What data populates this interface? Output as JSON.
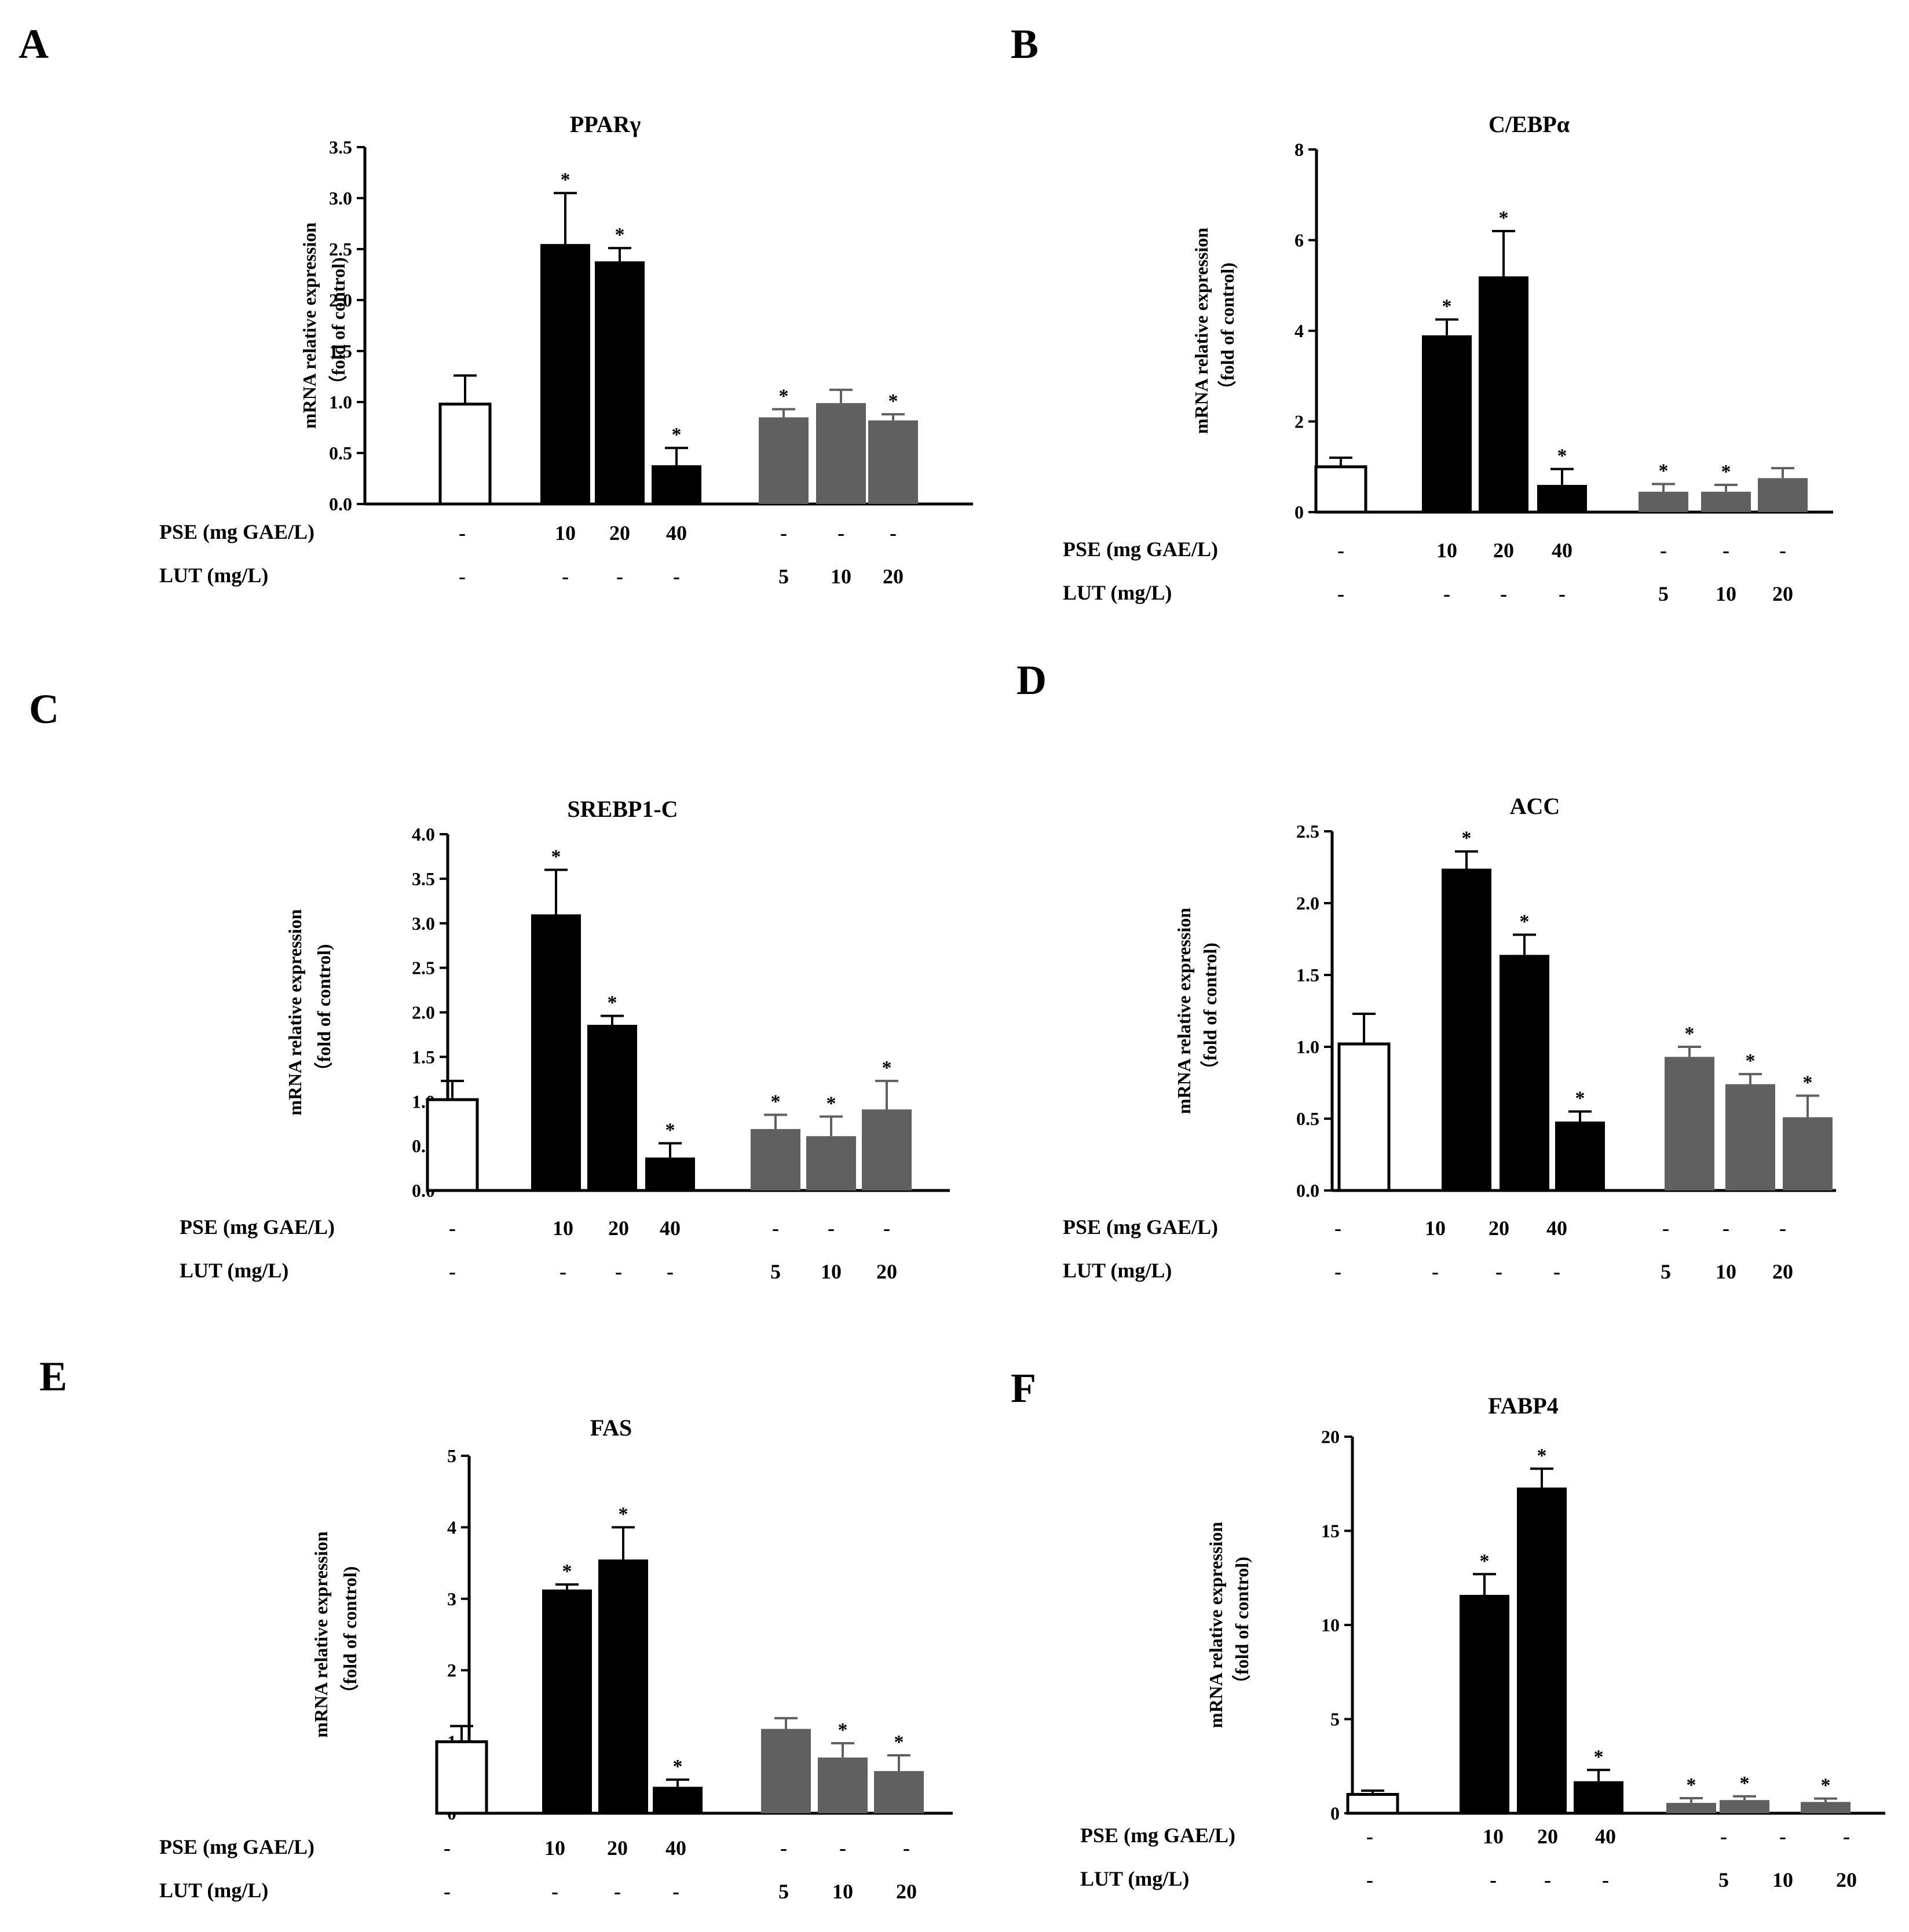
{
  "figure": {
    "colors": {
      "control": "#ffffff",
      "pse": "#000000",
      "lut": "#606060",
      "axis": "#000000"
    },
    "condition_labels": {
      "pse": "PSE (mg GAE/L)",
      "lut": "LUT (mg/L)"
    },
    "groups": [
      {
        "pse": "-",
        "lut": "-"
      },
      {
        "pse": "10",
        "lut": "-"
      },
      {
        "pse": "20",
        "lut": "-"
      },
      {
        "pse": "40",
        "lut": "-"
      },
      {
        "pse": "-",
        "lut": "5"
      },
      {
        "pse": "-",
        "lut": "10"
      },
      {
        "pse": "-",
        "lut": "20"
      }
    ]
  },
  "chart_data": [
    {
      "panel": "A",
      "type": "bar",
      "title": "PPARγ",
      "ylabel": [
        "mRNA relative expression",
        "（fold of control)"
      ],
      "ylim": [
        0,
        3.5
      ],
      "yticks": [
        "0.0",
        "0.5",
        "1.0",
        "1.5",
        "2.0",
        "2.5",
        "3.0",
        "3.5"
      ],
      "values": [
        0.98,
        2.55,
        2.38,
        0.38,
        0.85,
        0.99,
        0.82
      ],
      "errors": [
        0.28,
        0.5,
        0.13,
        0.17,
        0.08,
        0.13,
        0.06
      ],
      "significant": [
        false,
        true,
        true,
        true,
        true,
        false,
        true
      ]
    },
    {
      "panel": "B",
      "type": "bar",
      "title": "C/EBPα",
      "ylabel": [
        "mRNA relative expression",
        "（fold of control)"
      ],
      "ylim": [
        0,
        8
      ],
      "yticks": [
        "0",
        "2",
        "4",
        "6",
        "8"
      ],
      "values": [
        1.0,
        3.9,
        5.2,
        0.6,
        0.45,
        0.45,
        0.75
      ],
      "errors": [
        0.2,
        0.35,
        1.0,
        0.35,
        0.17,
        0.15,
        0.22
      ],
      "significant": [
        false,
        true,
        true,
        true,
        true,
        true,
        false
      ]
    },
    {
      "panel": "C",
      "type": "bar",
      "title": "SREBP1-C",
      "ylabel": [
        "mRNA relative expression",
        "（fold of control)"
      ],
      "ylim": [
        0,
        4
      ],
      "yticks": [
        "0.0",
        "0.5",
        "1.0",
        "1.5",
        "2.0",
        "2.5",
        "3.0",
        "3.5",
        "4.0"
      ],
      "values": [
        1.02,
        3.1,
        1.86,
        0.37,
        0.69,
        0.61,
        0.91
      ],
      "errors": [
        0.21,
        0.5,
        0.1,
        0.16,
        0.16,
        0.22,
        0.32
      ],
      "significant": [
        false,
        true,
        true,
        true,
        true,
        true,
        true
      ]
    },
    {
      "panel": "D",
      "type": "bar",
      "title": "ACC",
      "ylabel": [
        "mRNA relative expression",
        "（fold of control)"
      ],
      "ylim": [
        0,
        2.5
      ],
      "yticks": [
        "0.0",
        "0.5",
        "1.0",
        "1.5",
        "2.0",
        "2.5"
      ],
      "values": [
        1.02,
        2.24,
        1.64,
        0.48,
        0.93,
        0.74,
        0.51
      ],
      "errors": [
        0.21,
        0.12,
        0.14,
        0.07,
        0.07,
        0.07,
        0.15
      ],
      "significant": [
        false,
        true,
        true,
        true,
        true,
        true,
        true
      ]
    },
    {
      "panel": "E",
      "type": "bar",
      "title": "FAS",
      "ylabel": [
        "mRNA relative expression",
        "（fold of control)"
      ],
      "ylim": [
        0,
        5
      ],
      "yticks": [
        "0",
        "1",
        "2",
        "3",
        "4",
        "5"
      ],
      "values": [
        1.0,
        3.13,
        3.55,
        0.37,
        1.18,
        0.78,
        0.59
      ],
      "errors": [
        0.22,
        0.07,
        0.45,
        0.1,
        0.15,
        0.2,
        0.22
      ],
      "significant": [
        false,
        true,
        true,
        true,
        false,
        true,
        true
      ]
    },
    {
      "panel": "F",
      "type": "bar",
      "title": "FABP4",
      "ylabel": [
        "mRNA relative expression",
        "（fold of control)"
      ],
      "ylim": [
        0,
        20
      ],
      "yticks": [
        "0",
        "5",
        "10",
        "15",
        "20"
      ],
      "values": [
        1.0,
        11.6,
        17.3,
        1.7,
        0.55,
        0.7,
        0.6
      ],
      "errors": [
        0.2,
        1.1,
        1.0,
        0.6,
        0.25,
        0.2,
        0.18
      ],
      "significant": [
        false,
        true,
        true,
        true,
        true,
        true,
        true
      ]
    }
  ]
}
